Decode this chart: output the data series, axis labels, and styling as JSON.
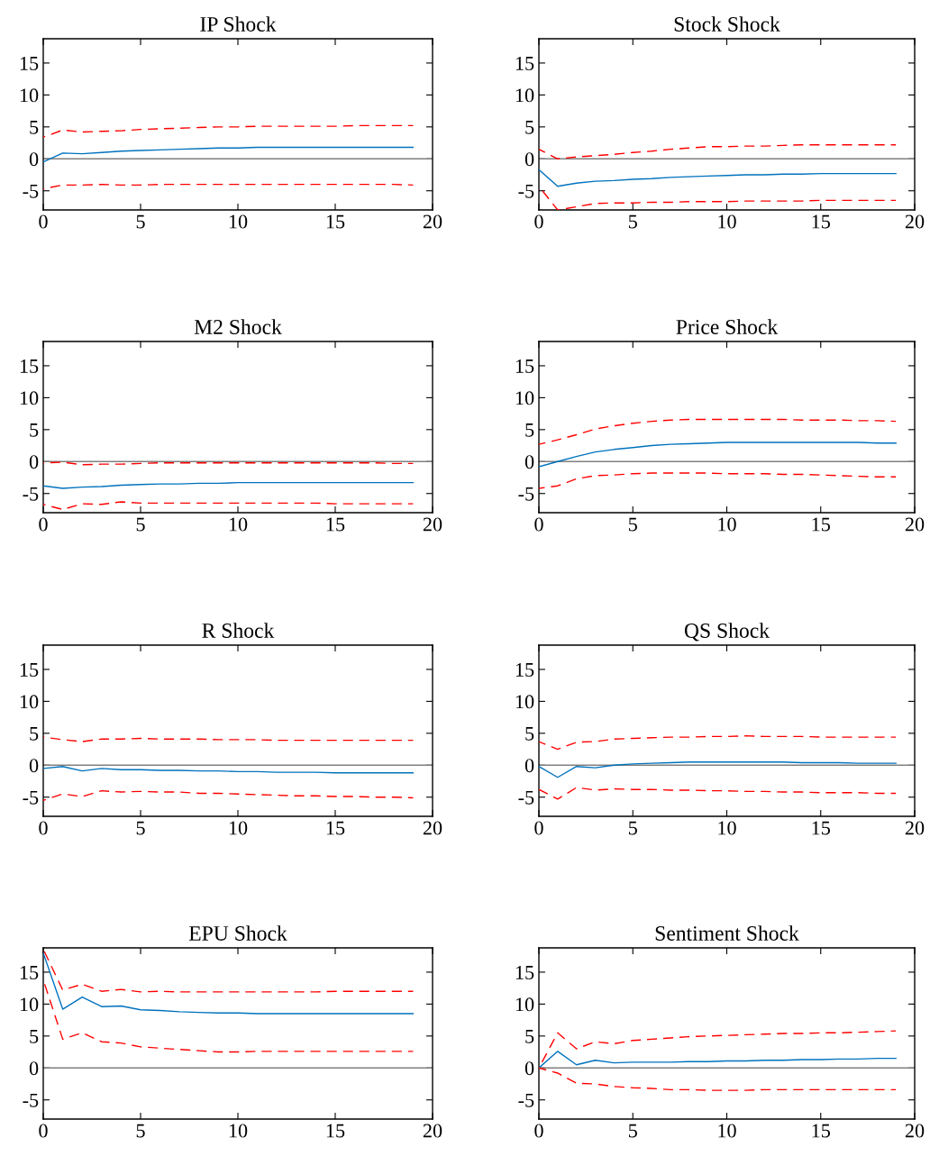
{
  "chart_data": [
    {
      "type": "line",
      "title": "IP Shock",
      "x": [
        0,
        1,
        2,
        3,
        4,
        5,
        6,
        7,
        8,
        9,
        10,
        11,
        12,
        13,
        14,
        15,
        16,
        17,
        18,
        19
      ],
      "xlim": [
        0,
        20
      ],
      "xticks": [
        0,
        5,
        10,
        15,
        20
      ],
      "ylim": [
        -8,
        18.8
      ],
      "yticks": [
        -5,
        0,
        5,
        10,
        15
      ],
      "grid": false,
      "ref_lines": [
        {
          "axis": "y",
          "value": 0,
          "color": "#808080"
        }
      ],
      "series": [
        {
          "color": "#0072bd",
          "line_style": "solid",
          "values": [
            -0.5,
            0.9,
            0.8,
            1.0,
            1.2,
            1.3,
            1.4,
            1.5,
            1.6,
            1.7,
            1.7,
            1.8,
            1.8,
            1.8,
            1.8,
            1.8,
            1.8,
            1.8,
            1.8,
            1.8
          ]
        },
        {
          "color": "#ff0000",
          "line_style": "dashed",
          "values": [
            3.4,
            4.5,
            4.2,
            4.3,
            4.4,
            4.6,
            4.7,
            4.8,
            4.9,
            5.0,
            5.0,
            5.1,
            5.1,
            5.1,
            5.1,
            5.1,
            5.2,
            5.2,
            5.2,
            5.2
          ]
        },
        {
          "color": "#ff0000",
          "line_style": "dashed",
          "values": [
            -4.7,
            -4.1,
            -4.1,
            -4.0,
            -4.1,
            -4.1,
            -4.0,
            -4.0,
            -4.0,
            -4.0,
            -4.0,
            -4.0,
            -4.0,
            -4.0,
            -4.0,
            -4.0,
            -4.0,
            -4.0,
            -4.0,
            -4.1
          ]
        }
      ]
    },
    {
      "type": "line",
      "title": "Stock Shock",
      "x": [
        0,
        1,
        2,
        3,
        4,
        5,
        6,
        7,
        8,
        9,
        10,
        11,
        12,
        13,
        14,
        15,
        16,
        17,
        18,
        19
      ],
      "xlim": [
        0,
        20
      ],
      "xticks": [
        0,
        5,
        10,
        15,
        20
      ],
      "ylim": [
        -8,
        18.8
      ],
      "yticks": [
        -5,
        0,
        5,
        10,
        15
      ],
      "grid": false,
      "ref_lines": [
        {
          "axis": "y",
          "value": 0,
          "color": "#808080"
        }
      ],
      "series": [
        {
          "color": "#0072bd",
          "line_style": "solid",
          "values": [
            -1.7,
            -4.3,
            -3.8,
            -3.5,
            -3.4,
            -3.2,
            -3.1,
            -2.9,
            -2.8,
            -2.7,
            -2.6,
            -2.5,
            -2.5,
            -2.4,
            -2.4,
            -2.3,
            -2.3,
            -2.3,
            -2.3,
            -2.3
          ]
        },
        {
          "color": "#ff0000",
          "line_style": "dashed",
          "values": [
            1.5,
            0.0,
            0.3,
            0.5,
            0.7,
            1.0,
            1.2,
            1.5,
            1.7,
            1.9,
            1.9,
            2.0,
            2.0,
            2.1,
            2.2,
            2.2,
            2.2,
            2.2,
            2.2,
            2.2
          ]
        },
        {
          "color": "#ff0000",
          "line_style": "dashed",
          "values": [
            -4.3,
            -8.0,
            -7.5,
            -7.0,
            -6.9,
            -6.9,
            -6.8,
            -6.8,
            -6.7,
            -6.7,
            -6.7,
            -6.6,
            -6.6,
            -6.6,
            -6.6,
            -6.5,
            -6.5,
            -6.5,
            -6.5,
            -6.5
          ]
        }
      ]
    },
    {
      "type": "line",
      "title": "M2 Shock",
      "x": [
        0,
        1,
        2,
        3,
        4,
        5,
        6,
        7,
        8,
        9,
        10,
        11,
        12,
        13,
        14,
        15,
        16,
        17,
        18,
        19
      ],
      "xlim": [
        0,
        20
      ],
      "xticks": [
        0,
        5,
        10,
        15,
        20
      ],
      "ylim": [
        -8,
        18.8
      ],
      "yticks": [
        -5,
        0,
        5,
        10,
        15
      ],
      "grid": false,
      "ref_lines": [
        {
          "axis": "y",
          "value": 0,
          "color": "#808080"
        }
      ],
      "series": [
        {
          "color": "#0072bd",
          "line_style": "solid",
          "values": [
            -3.8,
            -4.2,
            -4.0,
            -3.9,
            -3.7,
            -3.6,
            -3.5,
            -3.5,
            -3.4,
            -3.4,
            -3.3,
            -3.3,
            -3.3,
            -3.3,
            -3.3,
            -3.3,
            -3.3,
            -3.3,
            -3.3,
            -3.3
          ]
        },
        {
          "color": "#ff0000",
          "line_style": "dashed",
          "values": [
            -0.2,
            -0.1,
            -0.5,
            -0.4,
            -0.4,
            -0.3,
            -0.2,
            -0.2,
            -0.2,
            -0.2,
            -0.2,
            -0.2,
            -0.2,
            -0.2,
            -0.2,
            -0.2,
            -0.2,
            -0.2,
            -0.3,
            -0.3
          ]
        },
        {
          "color": "#ff0000",
          "line_style": "dashed",
          "values": [
            -6.7,
            -7.5,
            -6.6,
            -6.7,
            -6.3,
            -6.5,
            -6.5,
            -6.5,
            -6.5,
            -6.5,
            -6.5,
            -6.5,
            -6.5,
            -6.5,
            -6.5,
            -6.6,
            -6.6,
            -6.6,
            -6.6,
            -6.6
          ]
        }
      ]
    },
    {
      "type": "line",
      "title": "Price Shock",
      "x": [
        0,
        1,
        2,
        3,
        4,
        5,
        6,
        7,
        8,
        9,
        10,
        11,
        12,
        13,
        14,
        15,
        16,
        17,
        18,
        19
      ],
      "xlim": [
        0,
        20
      ],
      "xticks": [
        0,
        5,
        10,
        15,
        20
      ],
      "ylim": [
        -8,
        18.8
      ],
      "yticks": [
        -5,
        0,
        5,
        10,
        15
      ],
      "grid": false,
      "ref_lines": [
        {
          "axis": "y",
          "value": 0,
          "color": "#808080"
        }
      ],
      "series": [
        {
          "color": "#0072bd",
          "line_style": "solid",
          "values": [
            -0.8,
            0.0,
            0.8,
            1.5,
            1.9,
            2.2,
            2.5,
            2.7,
            2.8,
            2.9,
            3.0,
            3.0,
            3.0,
            3.0,
            3.0,
            3.0,
            3.0,
            3.0,
            2.9,
            2.9
          ]
        },
        {
          "color": "#ff0000",
          "line_style": "dashed",
          "values": [
            2.7,
            3.4,
            4.2,
            5.1,
            5.6,
            6.0,
            6.3,
            6.5,
            6.6,
            6.6,
            6.6,
            6.6,
            6.6,
            6.6,
            6.5,
            6.5,
            6.5,
            6.4,
            6.4,
            6.3
          ]
        },
        {
          "color": "#ff0000",
          "line_style": "dashed",
          "values": [
            -4.2,
            -3.8,
            -2.7,
            -2.2,
            -2.1,
            -1.9,
            -1.8,
            -1.8,
            -1.8,
            -1.8,
            -1.9,
            -1.9,
            -1.9,
            -2.0,
            -2.0,
            -2.1,
            -2.2,
            -2.3,
            -2.4,
            -2.4
          ]
        }
      ]
    },
    {
      "type": "line",
      "title": "R Shock",
      "x": [
        0,
        1,
        2,
        3,
        4,
        5,
        6,
        7,
        8,
        9,
        10,
        11,
        12,
        13,
        14,
        15,
        16,
        17,
        18,
        19
      ],
      "xlim": [
        0,
        20
      ],
      "xticks": [
        0,
        5,
        10,
        15,
        20
      ],
      "ylim": [
        -8,
        18.8
      ],
      "yticks": [
        -5,
        0,
        5,
        10,
        15
      ],
      "grid": false,
      "ref_lines": [
        {
          "axis": "y",
          "value": 0,
          "color": "#808080"
        }
      ],
      "series": [
        {
          "color": "#0072bd",
          "line_style": "solid",
          "values": [
            -0.5,
            -0.2,
            -0.9,
            -0.5,
            -0.7,
            -0.7,
            -0.8,
            -0.8,
            -0.9,
            -0.9,
            -1.0,
            -1.0,
            -1.1,
            -1.1,
            -1.1,
            -1.2,
            -1.2,
            -1.2,
            -1.2,
            -1.2
          ]
        },
        {
          "color": "#ff0000",
          "line_style": "dashed",
          "values": [
            4.4,
            4.0,
            3.7,
            4.1,
            4.1,
            4.2,
            4.1,
            4.1,
            4.1,
            4.0,
            4.0,
            4.0,
            3.9,
            3.9,
            3.9,
            3.9,
            3.9,
            3.9,
            3.9,
            3.9
          ]
        },
        {
          "color": "#ff0000",
          "line_style": "dashed",
          "values": [
            -5.5,
            -4.5,
            -4.9,
            -4.0,
            -4.2,
            -4.1,
            -4.2,
            -4.2,
            -4.4,
            -4.4,
            -4.5,
            -4.6,
            -4.7,
            -4.8,
            -4.8,
            -4.9,
            -4.9,
            -5.0,
            -5.0,
            -5.1
          ]
        }
      ]
    },
    {
      "type": "line",
      "title": "QS Shock",
      "x": [
        0,
        1,
        2,
        3,
        4,
        5,
        6,
        7,
        8,
        9,
        10,
        11,
        12,
        13,
        14,
        15,
        16,
        17,
        18,
        19
      ],
      "xlim": [
        0,
        20
      ],
      "xticks": [
        0,
        5,
        10,
        15,
        20
      ],
      "ylim": [
        -8,
        18.8
      ],
      "yticks": [
        -5,
        0,
        5,
        10,
        15
      ],
      "grid": false,
      "ref_lines": [
        {
          "axis": "y",
          "value": 0,
          "color": "#808080"
        }
      ],
      "series": [
        {
          "color": "#0072bd",
          "line_style": "solid",
          "values": [
            -0.2,
            -1.9,
            -0.2,
            -0.4,
            0.0,
            0.2,
            0.3,
            0.4,
            0.5,
            0.5,
            0.5,
            0.5,
            0.5,
            0.5,
            0.4,
            0.4,
            0.4,
            0.3,
            0.3,
            0.3
          ]
        },
        {
          "color": "#ff0000",
          "line_style": "dashed",
          "values": [
            3.7,
            2.5,
            3.6,
            3.7,
            4.1,
            4.2,
            4.3,
            4.4,
            4.4,
            4.5,
            4.5,
            4.6,
            4.5,
            4.5,
            4.5,
            4.4,
            4.4,
            4.4,
            4.4,
            4.4
          ]
        },
        {
          "color": "#ff0000",
          "line_style": "dashed",
          "values": [
            -3.8,
            -5.3,
            -3.5,
            -3.9,
            -3.7,
            -3.8,
            -3.8,
            -3.9,
            -3.9,
            -4.0,
            -4.0,
            -4.1,
            -4.1,
            -4.2,
            -4.2,
            -4.3,
            -4.3,
            -4.3,
            -4.4,
            -4.4
          ]
        }
      ]
    },
    {
      "type": "line",
      "title": "EPU Shock",
      "x": [
        0,
        1,
        2,
        3,
        4,
        5,
        6,
        7,
        8,
        9,
        10,
        11,
        12,
        13,
        14,
        15,
        16,
        17,
        18,
        19
      ],
      "xlim": [
        0,
        20
      ],
      "xticks": [
        0,
        5,
        10,
        15,
        20
      ],
      "ylim": [
        -8,
        18.8
      ],
      "yticks": [
        -5,
        0,
        5,
        10,
        15
      ],
      "grid": false,
      "ref_lines": [
        {
          "axis": "y",
          "value": 0,
          "color": "#808080"
        }
      ],
      "series": [
        {
          "color": "#0072bd",
          "line_style": "solid",
          "values": [
            18.0,
            9.2,
            11.1,
            9.6,
            9.7,
            9.1,
            9.0,
            8.8,
            8.7,
            8.6,
            8.6,
            8.5,
            8.5,
            8.5,
            8.5,
            8.5,
            8.5,
            8.5,
            8.5,
            8.5
          ]
        },
        {
          "color": "#ff0000",
          "line_style": "dashed",
          "values": [
            18.6,
            12.2,
            13.1,
            12.0,
            12.3,
            11.9,
            12.0,
            11.9,
            11.9,
            11.9,
            11.9,
            11.9,
            11.9,
            11.9,
            11.9,
            12.0,
            12.0,
            12.0,
            12.0,
            12.0
          ]
        },
        {
          "color": "#ff0000",
          "line_style": "dashed",
          "values": [
            13.8,
            4.5,
            5.5,
            4.1,
            3.9,
            3.3,
            3.1,
            2.9,
            2.7,
            2.5,
            2.5,
            2.6,
            2.6,
            2.6,
            2.6,
            2.6,
            2.6,
            2.6,
            2.6,
            2.6
          ]
        }
      ]
    },
    {
      "type": "line",
      "title": "Sentiment Shock",
      "x": [
        0,
        1,
        2,
        3,
        4,
        5,
        6,
        7,
        8,
        9,
        10,
        11,
        12,
        13,
        14,
        15,
        16,
        17,
        18,
        19
      ],
      "xlim": [
        0,
        20
      ],
      "xticks": [
        0,
        5,
        10,
        15,
        20
      ],
      "ylim": [
        -8,
        18.8
      ],
      "yticks": [
        -5,
        0,
        5,
        10,
        15
      ],
      "grid": false,
      "ref_lines": [
        {
          "axis": "y",
          "value": 0,
          "color": "#808080"
        }
      ],
      "series": [
        {
          "color": "#0072bd",
          "line_style": "solid",
          "values": [
            0,
            2.6,
            0.5,
            1.2,
            0.8,
            0.9,
            0.9,
            0.9,
            1.0,
            1.0,
            1.1,
            1.1,
            1.2,
            1.2,
            1.3,
            1.3,
            1.4,
            1.4,
            1.5,
            1.5
          ]
        },
        {
          "color": "#ff0000",
          "line_style": "dashed",
          "values": [
            0,
            5.5,
            3.0,
            4.1,
            3.8,
            4.3,
            4.5,
            4.7,
            4.9,
            5.0,
            5.1,
            5.2,
            5.3,
            5.4,
            5.4,
            5.5,
            5.5,
            5.6,
            5.7,
            5.8
          ]
        },
        {
          "color": "#ff0000",
          "line_style": "dashed",
          "values": [
            0,
            -0.8,
            -2.4,
            -2.5,
            -2.9,
            -3.1,
            -3.2,
            -3.4,
            -3.4,
            -3.5,
            -3.5,
            -3.5,
            -3.4,
            -3.4,
            -3.4,
            -3.4,
            -3.4,
            -3.4,
            -3.4,
            -3.4
          ]
        }
      ]
    }
  ]
}
